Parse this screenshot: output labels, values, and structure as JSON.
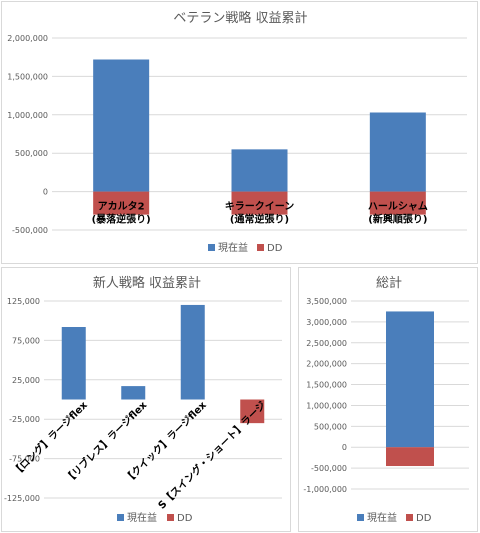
{
  "colors": {
    "profit": "#4a7ebb",
    "dd": "#c0504d",
    "grid": "#d9d9d9",
    "axis_text": "#595959"
  },
  "legend_labels": [
    "現在益",
    "DD"
  ],
  "chart_data": [
    {
      "type": "bar",
      "title": "ベテラン戦略 収益累計",
      "categories": [
        [
          "アカルタ2",
          "(暴落逆張り)"
        ],
        [
          "キラークイーン",
          "(通常逆張り)"
        ],
        [
          "ハールシャム",
          "(新興順張り)"
        ]
      ],
      "series": [
        {
          "name": "現在益",
          "values": [
            1720000,
            550000,
            1030000
          ]
        },
        {
          "name": "DD",
          "values": [
            -300000,
            -300000,
            -300000
          ]
        }
      ],
      "ylim": [
        -500000,
        2000000
      ],
      "yticks": [
        2000000,
        1500000,
        1000000,
        500000,
        0,
        -500000
      ],
      "ytick_labels": [
        "2,000,000",
        "1,500,000",
        "1,000,000",
        "500,000",
        "0",
        "-500,000"
      ],
      "grid": true,
      "legend": "bottom"
    },
    {
      "type": "bar",
      "title": "新人戦略 収益累計",
      "categories": [
        "【ロング】ラージflex",
        "【リブレス】ラージflex",
        "【クイック】ラージflex",
        "S【スイング・ショート】ラージ"
      ],
      "series": [
        {
          "name": "現在益",
          "values": [
            92000,
            17000,
            120000,
            0
          ]
        },
        {
          "name": "DD",
          "values": [
            0,
            0,
            0,
            -30000
          ]
        }
      ],
      "ylim": [
        -125000,
        125000
      ],
      "yticks": [
        125000,
        75000,
        25000,
        -25000,
        -75000,
        -125000
      ],
      "ytick_labels": [
        "125,000",
        "75,000",
        "25,000",
        "-25,000",
        "-75,000",
        "-125,000"
      ],
      "grid": true,
      "legend": "bottom"
    },
    {
      "type": "bar",
      "title": "総計",
      "categories": [
        ""
      ],
      "series": [
        {
          "name": "現在益",
          "values": [
            3250000
          ]
        },
        {
          "name": "DD",
          "values": [
            -450000
          ]
        }
      ],
      "ylim": [
        -1000000,
        3500000
      ],
      "yticks": [
        3500000,
        3000000,
        2500000,
        2000000,
        1500000,
        1000000,
        500000,
        0,
        -500000,
        -1000000
      ],
      "ytick_labels": [
        "3,500,000",
        "3,000,000",
        "2,500,000",
        "2,000,000",
        "1,500,000",
        "1,000,000",
        "500,000",
        "0",
        "-500,000",
        "-1,000,000"
      ],
      "grid": true,
      "legend": "bottom"
    }
  ]
}
